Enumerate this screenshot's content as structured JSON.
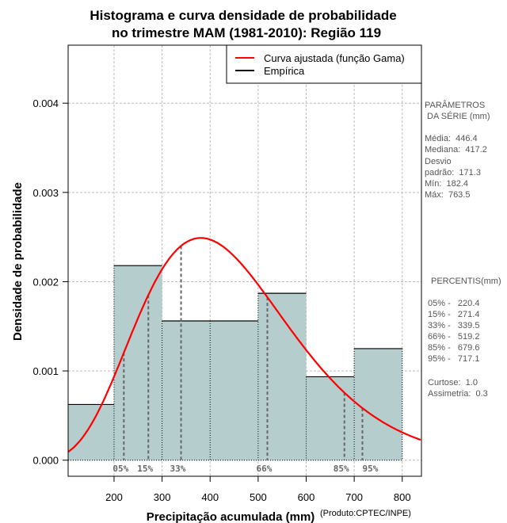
{
  "chart_data": {
    "type": "bar",
    "title_line1": "Histograma e curva densidade de probabilidade",
    "title_line2": "no trimestre MAM (1981-2010): Região 119",
    "xlabel": "Precipitação acumulada (mm)",
    "ylabel": "Densidade de probabilidade",
    "credit": "(Produto:CPTEC/INPE)",
    "xlim": [
      104.4,
      840
    ],
    "ylim": [
      -0.00018,
      0.00465
    ],
    "x_ticks": [
      200,
      300,
      400,
      500,
      600,
      700,
      800
    ],
    "x_tick_labels": [
      "200",
      "300",
      "400",
      "500",
      "600",
      "700",
      "800"
    ],
    "y_ticks": [
      0,
      0.001,
      0.002,
      0.003,
      0.004
    ],
    "y_tick_labels": [
      "0.000",
      "0.001",
      "0.002",
      "0.003",
      "0.004"
    ],
    "grid": true,
    "bars": [
      {
        "x0": 104.4,
        "x1": 200,
        "density": 0.000624
      },
      {
        "x0": 200,
        "x1": 300,
        "density": 0.00218
      },
      {
        "x0": 300,
        "x1": 400,
        "density": 0.00156
      },
      {
        "x0": 400,
        "x1": 500,
        "density": 0.00156
      },
      {
        "x0": 500,
        "x1": 600,
        "density": 0.00187
      },
      {
        "x0": 600,
        "x1": 700,
        "density": 0.000935
      },
      {
        "x0": 700,
        "x1": 800,
        "density": 0.00125
      }
    ],
    "bar_color": "#b5cdcd",
    "curve": {
      "name": "Curva ajustada (função Gama)",
      "color": "#ff0000",
      "distribution": "gamma",
      "mean": 446.4,
      "sd": 171.3,
      "peak_density": 0.00249,
      "peak_x": 378
    },
    "percentiles": [
      {
        "label": "05%",
        "value": 220.4
      },
      {
        "label": "15%",
        "value": 271.4
      },
      {
        "label": "33%",
        "value": 339.5
      },
      {
        "label": "66%",
        "value": 519.2
      },
      {
        "label": "85%",
        "value": 679.6
      },
      {
        "label": "95%",
        "value": 717.1
      }
    ],
    "legend": {
      "position": "top-right",
      "entries": [
        {
          "label": "Curva ajustada (função Gama)",
          "color": "#ff0000"
        },
        {
          "label": "Empírica",
          "color": "#000000"
        }
      ]
    }
  },
  "side_panel": {
    "params_title_1": "PARÂMETROS",
    "params_title_2": " DA SÉRIE (mm)",
    "media": "Média:  446.4",
    "mediana": "Mediana:  417.2",
    "desvio_1": "Desvio",
    "desvio_2": "padrão:  171.3",
    "min": "Mín:  182.4",
    "max": "Máx:  763.5",
    "percentis_title": "PERCENTIS(mm)",
    "percentis": [
      "05% -   220.4",
      "15% -   271.4",
      "33% -   339.5",
      "66% -   519.2",
      "85% -   679.6",
      "95% -   717.1"
    ],
    "curtose": "Curtose:  1.0",
    "assimetria": "Assimetria:  0.3"
  }
}
